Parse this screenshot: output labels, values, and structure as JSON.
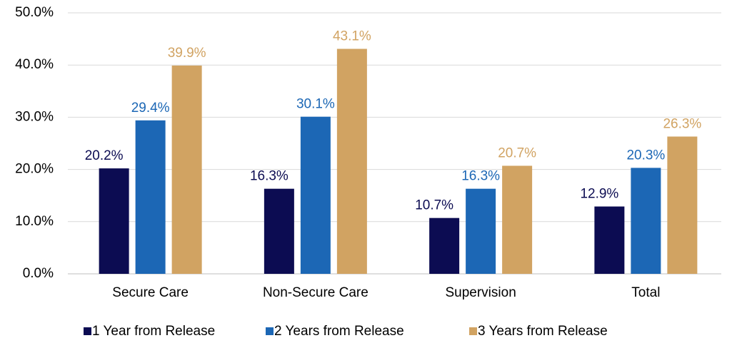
{
  "chart_data": {
    "type": "bar",
    "categories": [
      "Secure Care",
      "Non-Secure Care",
      "Supervision",
      "Total"
    ],
    "series": [
      {
        "name": "1 Year from Release",
        "color": "#0c0c52",
        "values": [
          20.2,
          16.3,
          10.7,
          12.9
        ],
        "value_labels": [
          "20.2%",
          "16.3%",
          "10.7%",
          "12.9%"
        ]
      },
      {
        "name": "2 Years from Release",
        "color": "#1c67b5",
        "values": [
          29.4,
          30.1,
          16.3,
          20.3
        ],
        "value_labels": [
          "29.4%",
          "30.1%",
          "16.3%",
          "20.3%"
        ]
      },
      {
        "name": "3 Years from Release",
        "color": "#d1a362",
        "values": [
          39.9,
          43.1,
          20.7,
          26.3
        ],
        "value_labels": [
          "39.9%",
          "43.1%",
          "20.7%",
          "26.3%"
        ]
      }
    ],
    "ylim": [
      0,
      50
    ],
    "yticks": [
      {
        "value": 0,
        "label": "0.0%"
      },
      {
        "value": 10,
        "label": "10.0%"
      },
      {
        "value": 20,
        "label": "20.0%"
      },
      {
        "value": 30,
        "label": "30.0%"
      },
      {
        "value": 40,
        "label": "40.0%"
      },
      {
        "value": 50,
        "label": "50.0%"
      }
    ],
    "grid": true,
    "legend": "bottom"
  }
}
